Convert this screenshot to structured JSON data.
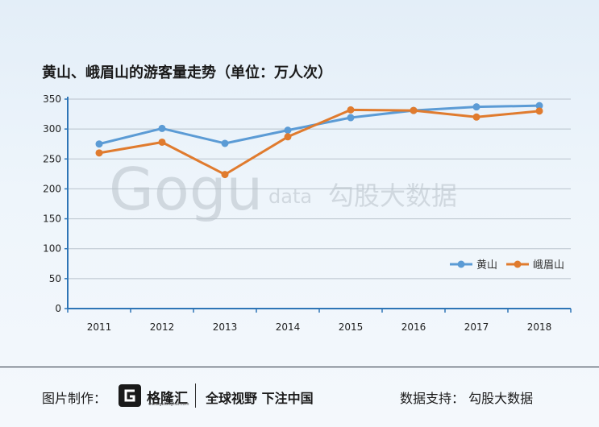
{
  "chart_data": {
    "type": "line",
    "title": "黄山、峨眉山的游客量走势（单位：万人次）",
    "categories": [
      "2011",
      "2012",
      "2013",
      "2014",
      "2015",
      "2016",
      "2017",
      "2018"
    ],
    "series": [
      {
        "name": "黄山",
        "values": [
          275,
          301,
          276,
          298,
          319,
          331,
          337,
          339
        ],
        "color": "#5b9bd5"
      },
      {
        "name": "峨眉山",
        "values": [
          260,
          278,
          224,
          287,
          332,
          331,
          320,
          330
        ],
        "color": "#e07b2e"
      }
    ],
    "ylim": [
      0,
      350
    ],
    "yticks": [
      0,
      50,
      100,
      150,
      200,
      250,
      300,
      350
    ],
    "grid": true,
    "legend_position": "bottom-right"
  },
  "watermark": {
    "text_latin": "Gogu",
    "text_data": "data",
    "text_cn": "勾股大数据"
  },
  "footer": {
    "credit_label": "图片制作：",
    "brand_name": "格隆汇",
    "brand_site": "www.gelonghui.com",
    "slogan": "全球视野 下注中国",
    "support": "数据支持：  勾股大数据"
  }
}
